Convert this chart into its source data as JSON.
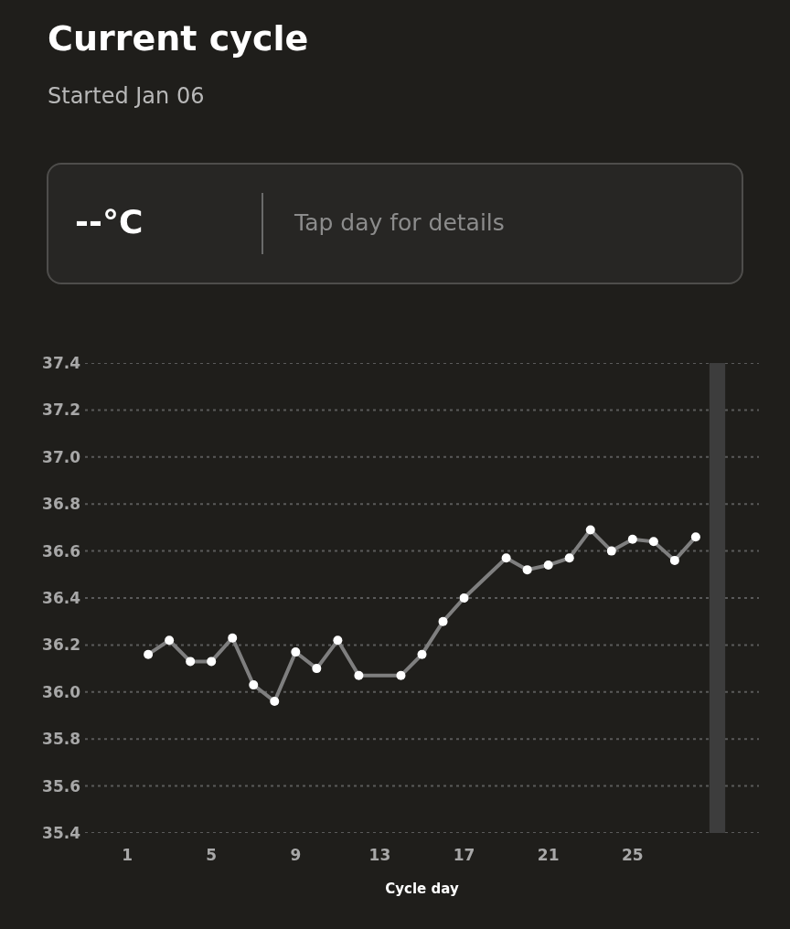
{
  "chart_data": {
    "type": "line",
    "title": "Current cycle",
    "subtitle": "Started Jan 06",
    "xlabel": "Cycle day",
    "annotations": [
      "--°C",
      "Tap day for details"
    ],
    "series": [
      {
        "color": "#7f7f7f",
        "x": [
          2,
          3,
          4,
          5,
          6,
          7,
          8,
          9,
          10,
          11,
          12,
          14,
          15,
          16,
          17,
          19,
          20,
          21,
          22,
          23,
          24,
          25,
          26,
          27,
          28
        ],
        "values": [
          36.16,
          36.22,
          36.13,
          36.13,
          36.23,
          36.03,
          35.96,
          36.17,
          36.1,
          36.22,
          36.07,
          36.07,
          36.16,
          36.3,
          36.4,
          36.57,
          36.52,
          36.54,
          36.57,
          36.69,
          36.6,
          36.65,
          36.64,
          36.56,
          36.66
        ]
      }
    ],
    "xlim": [
      -1,
      31
    ],
    "xticks": [
      1,
      5,
      9,
      13,
      17,
      21,
      25
    ],
    "ylim": [
      35.4,
      37.4
    ],
    "yticks": [
      35.4,
      35.6,
      35.8,
      {
        "value": 36.0,
        "label": "36.0"
      },
      36.2,
      36.4,
      36.6,
      36.8,
      {
        "value": 37.0,
        "label": "37.0"
      },
      37.2,
      37.4
    ],
    "bands": [
      {
        "axis": "x",
        "from": 28.65,
        "to": 29.4,
        "color": "#3d3d3d"
      }
    ],
    "grid": "y",
    "marker": "circle",
    "line_style": "solid"
  }
}
